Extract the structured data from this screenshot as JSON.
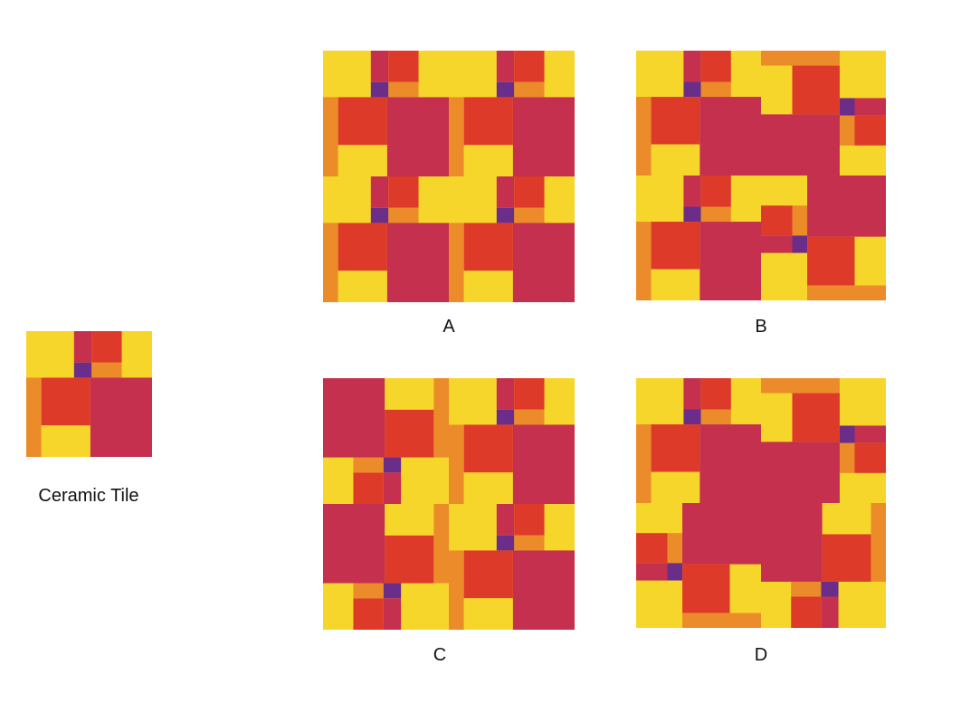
{
  "colors": {
    "yellow": "#F7D62C",
    "orange": "#EB8B2A",
    "red": "#DE3A2A",
    "magenta": "#C4304E",
    "purple": "#6A2E8A"
  },
  "tile_label": "Ceramic Tile",
  "options": [
    {
      "label": "A",
      "rotations": [
        0,
        0,
        0,
        0
      ]
    },
    {
      "label": "B",
      "rotations": [
        0,
        1,
        0,
        3
      ]
    },
    {
      "label": "C",
      "rotations": [
        2,
        0,
        2,
        0
      ]
    },
    {
      "label": "D",
      "rotations": [
        0,
        1,
        3,
        2
      ]
    }
  ]
}
